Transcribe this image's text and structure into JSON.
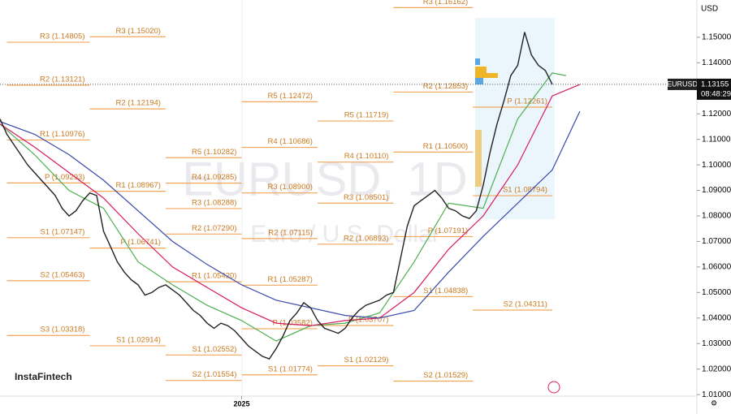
{
  "chart_data": {
    "type": "line",
    "header": "USD",
    "watermark": "EURUSD, 1D",
    "subtitle": "Euro / U.S. Dollar",
    "brand": "InstaFintech",
    "last_price": {
      "symbol": "EURUSD",
      "value": 1.13155,
      "label": "1.13155",
      "countdown": "08:48:29"
    },
    "ylim": [
      1.0094,
      1.1646
    ],
    "yticks": [
      {
        "value": 1.01,
        "label": "1.01000"
      },
      {
        "value": 1.02,
        "label": "1.02000"
      },
      {
        "value": 1.03,
        "label": "1.03000"
      },
      {
        "value": 1.04,
        "label": "1.04000"
      },
      {
        "value": 1.05,
        "label": "1.05000"
      },
      {
        "value": 1.06,
        "label": "1.06000"
      },
      {
        "value": 1.07,
        "label": "1.07000"
      },
      {
        "value": 1.08,
        "label": "1.08000"
      },
      {
        "value": 1.09,
        "label": "1.09000"
      },
      {
        "value": 1.1,
        "label": "1.10000"
      },
      {
        "value": 1.11,
        "label": "1.11000"
      },
      {
        "value": 1.12,
        "label": "1.12000"
      },
      {
        "value": 1.13,
        "label": "1.13000"
      },
      {
        "value": 1.14,
        "label": "1.14000"
      },
      {
        "value": 1.15,
        "label": "1.15000"
      }
    ],
    "xlim": [
      0,
      100.6
    ],
    "xticks": [
      {
        "value": 35,
        "label": "2025"
      }
    ],
    "x": [
      0,
      1,
      2,
      3,
      4,
      5,
      6,
      7,
      8,
      9,
      10,
      11,
      12,
      13,
      14,
      15,
      16,
      17,
      18,
      19,
      20,
      21,
      22,
      23,
      24,
      25,
      26,
      27,
      28,
      29,
      30,
      31,
      32,
      33,
      34,
      35,
      36,
      37,
      38,
      39,
      40,
      41,
      42,
      43,
      44,
      45,
      46,
      47,
      48,
      49,
      50,
      51,
      52,
      53,
      54,
      55,
      56,
      57,
      58,
      59,
      60,
      61,
      62,
      63,
      64,
      65,
      66,
      67,
      68,
      69,
      70,
      71,
      72,
      73,
      74,
      75,
      76,
      77,
      78,
      79,
      80
    ],
    "values": [
      1.118,
      1.112,
      1.108,
      1.104,
      1.1,
      1.097,
      1.094,
      1.091,
      1.088,
      1.083,
      1.08,
      1.082,
      1.086,
      1.089,
      1.088,
      1.074,
      1.068,
      1.062,
      1.058,
      1.055,
      1.053,
      1.049,
      1.05,
      1.052,
      1.053,
      1.051,
      1.049,
      1.046,
      1.043,
      1.041,
      1.038,
      1.036,
      1.038,
      1.037,
      1.035,
      1.032,
      1.029,
      1.027,
      1.025,
      1.024,
      1.028,
      1.033,
      1.039,
      1.042,
      1.046,
      1.044,
      1.039,
      1.036,
      1.035,
      1.034,
      1.036,
      1.04,
      1.043,
      1.045,
      1.046,
      1.047,
      1.049,
      1.05,
      1.063,
      1.076,
      1.084,
      1.086,
      1.088,
      1.09,
      1.087,
      1.083,
      1.082,
      1.08,
      1.079,
      1.082,
      1.092,
      1.105,
      1.116,
      1.125,
      1.135,
      1.139,
      1.152,
      1.143,
      1.139,
      1.137,
      1.1316
    ],
    "color": "#222222",
    "series": [
      {
        "color": "#4caf50",
        "x": [
          0,
          5,
          10,
          15,
          20,
          25,
          30,
          35,
          40,
          45,
          50,
          55,
          60,
          65,
          70,
          75,
          80,
          82
        ],
        "values": [
          1.116,
          1.104,
          1.09,
          1.083,
          1.062,
          1.053,
          1.045,
          1.039,
          1.031,
          1.037,
          1.038,
          1.042,
          1.062,
          1.085,
          1.083,
          1.118,
          1.136,
          1.135
        ]
      },
      {
        "color": "#d81b60",
        "x": [
          0,
          5,
          10,
          15,
          20,
          25,
          30,
          35,
          40,
          45,
          50,
          55,
          60,
          65,
          70,
          75,
          80,
          84
        ],
        "values": [
          1.116,
          1.107,
          1.097,
          1.087,
          1.073,
          1.06,
          1.052,
          1.044,
          1.038,
          1.037,
          1.039,
          1.04,
          1.05,
          1.067,
          1.08,
          1.1,
          1.127,
          1.1315
        ]
      },
      {
        "color": "#3949ab",
        "x": [
          0,
          5,
          10,
          15,
          20,
          25,
          30,
          35,
          40,
          45,
          50,
          55,
          60,
          65,
          70,
          75,
          80,
          84
        ],
        "values": [
          1.117,
          1.112,
          1.104,
          1.094,
          1.082,
          1.07,
          1.061,
          1.053,
          1.047,
          1.044,
          1.041,
          1.04,
          1.043,
          1.058,
          1.072,
          1.085,
          1.098,
          1.121
        ]
      }
    ],
    "levels": [
      {
        "label": "R3 (1.14805)",
        "value": 1.14805,
        "start": 1,
        "end": 13
      },
      {
        "label": "R2 (1.13121)",
        "value": 1.13121,
        "start": 1,
        "end": 13
      },
      {
        "label": "R1 (1.10976)",
        "value": 1.10976,
        "start": 1,
        "end": 13
      },
      {
        "label": "P (1.09293)",
        "value": 1.09293,
        "start": 1,
        "end": 13
      },
      {
        "label": "S1 (1.07147)",
        "value": 1.07147,
        "start": 1,
        "end": 13
      },
      {
        "label": "S2 (1.05463)",
        "value": 1.05463,
        "start": 1,
        "end": 13
      },
      {
        "label": "S3 (1.03318)",
        "value": 1.03318,
        "start": 1,
        "end": 13
      },
      {
        "label": "R3 (1.15020)",
        "value": 1.1502,
        "start": 13,
        "end": 24
      },
      {
        "label": "R2 (1.12194)",
        "value": 1.12194,
        "start": 13,
        "end": 24
      },
      {
        "label": "R1 (1.08967)",
        "value": 1.08967,
        "start": 13,
        "end": 24
      },
      {
        "label": "P (1.06741)",
        "value": 1.06741,
        "start": 13,
        "end": 24
      },
      {
        "label": "S1 (1.02914)",
        "value": 1.02914,
        "start": 13,
        "end": 24
      },
      {
        "label": "R5 (1.10282)",
        "value": 1.10282,
        "start": 24,
        "end": 35
      },
      {
        "label": "R4 (1.09285)",
        "value": 1.09285,
        "start": 24,
        "end": 35
      },
      {
        "label": "R3 (1.08288)",
        "value": 1.08288,
        "start": 24,
        "end": 35
      },
      {
        "label": "R2 (1.07290)",
        "value": 1.0729,
        "start": 24,
        "end": 35
      },
      {
        "label": "R1 (1.05420)",
        "value": 1.0542,
        "start": 24,
        "end": 35
      },
      {
        "label": "S1 (1.02552)",
        "value": 1.02552,
        "start": 24,
        "end": 35
      },
      {
        "label": "S2 (1.01554)",
        "value": 1.01554,
        "start": 24,
        "end": 35
      },
      {
        "label": "R5 (1.12472)",
        "value": 1.12472,
        "start": 35,
        "end": 46
      },
      {
        "label": "R4 (1.10686)",
        "value": 1.10686,
        "start": 35,
        "end": 46
      },
      {
        "label": "R3 (1.08900)",
        "value": 1.089,
        "start": 35,
        "end": 46
      },
      {
        "label": "R2 (1.07115)",
        "value": 1.07115,
        "start": 35,
        "end": 46
      },
      {
        "label": "R1 (1.05287)",
        "value": 1.05287,
        "start": 35,
        "end": 46
      },
      {
        "label": "P (1.03582)",
        "value": 1.03582,
        "start": 35,
        "end": 46
      },
      {
        "label": "S1 (1.01774)",
        "value": 1.01774,
        "start": 35,
        "end": 46
      },
      {
        "label": "R5 (1.11719)",
        "value": 1.11719,
        "start": 46,
        "end": 57
      },
      {
        "label": "R4 (1.10110)",
        "value": 1.1011,
        "start": 46,
        "end": 57
      },
      {
        "label": "R3 (1.08501)",
        "value": 1.08501,
        "start": 46,
        "end": 57
      },
      {
        "label": "R2 (1.06893)",
        "value": 1.06893,
        "start": 46,
        "end": 57
      },
      {
        "label": "P (1.03707)",
        "value": 1.03707,
        "start": 46,
        "end": 57
      },
      {
        "label": "S1 (1.02129)",
        "value": 1.02129,
        "start": 46,
        "end": 57
      },
      {
        "label": "R3 (1.16162)",
        "value": 1.16162,
        "start": 57,
        "end": 68.5
      },
      {
        "label": "R2 (1.12853)",
        "value": 1.12853,
        "start": 57,
        "end": 68.5
      },
      {
        "label": "R1 (1.10500)",
        "value": 1.105,
        "start": 57,
        "end": 68.5
      },
      {
        "label": "P (1.07191)",
        "value": 1.07191,
        "start": 57,
        "end": 68.5
      },
      {
        "label": "S1 (1.04838)",
        "value": 1.04838,
        "start": 57,
        "end": 68.5
      },
      {
        "label": "S2 (1.01529)",
        "value": 1.01529,
        "start": 57,
        "end": 68.5
      },
      {
        "label": "P (1.12261)",
        "value": 1.12261,
        "start": 68.5,
        "end": 80
      },
      {
        "label": "S1 (1.08794)",
        "value": 1.08794,
        "start": 68.5,
        "end": 80
      },
      {
        "label": "S2 (1.04311)",
        "value": 1.04311,
        "start": 68.5,
        "end": 80
      }
    ]
  }
}
